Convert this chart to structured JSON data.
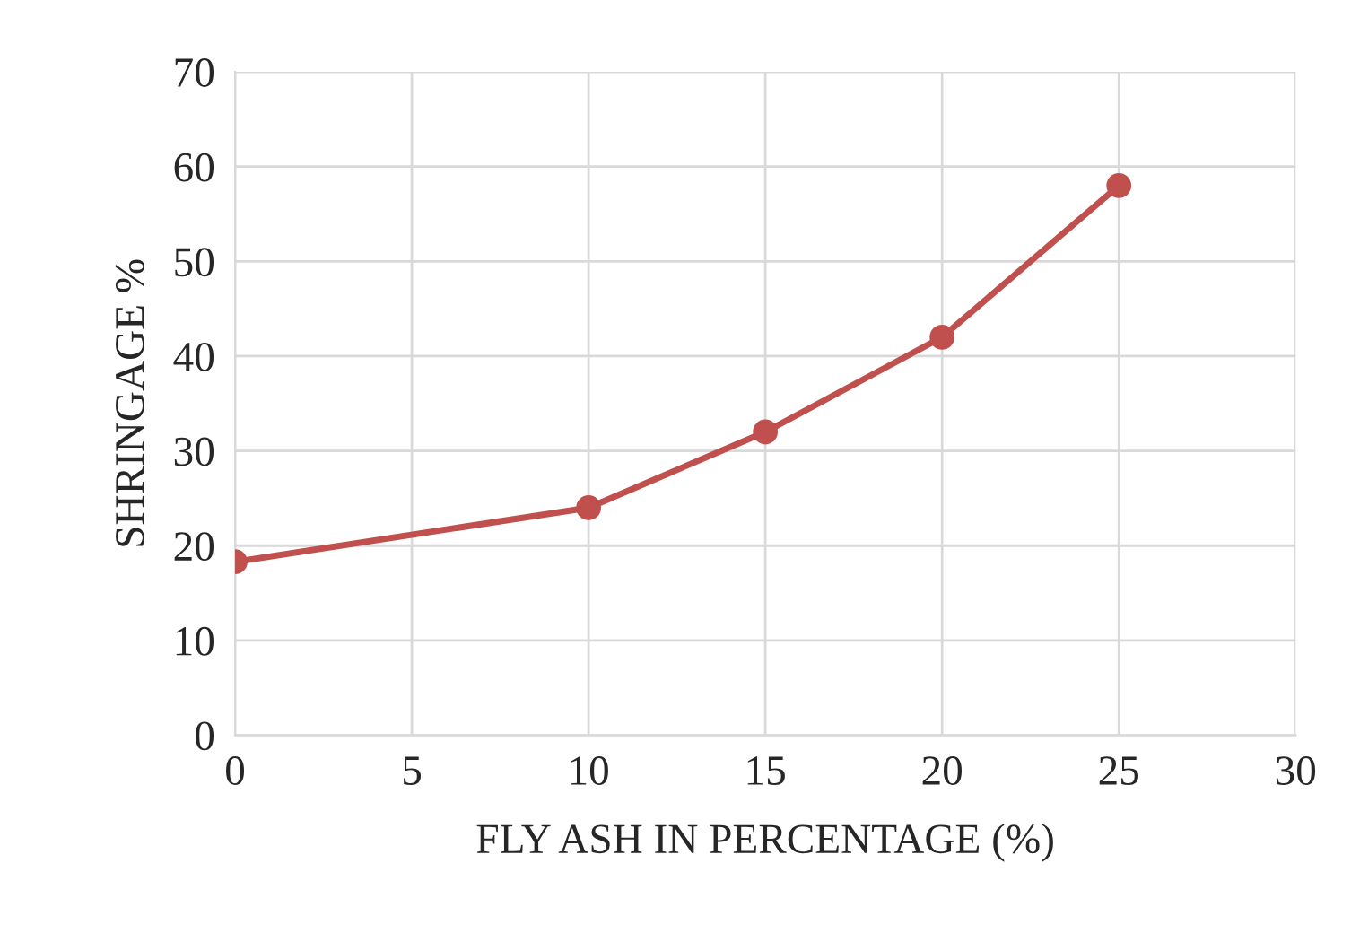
{
  "chart_data": {
    "type": "line",
    "xlabel": "FLY ASH IN PERCENTAGE (%)",
    "ylabel": "SHRINGAGE %",
    "x": [
      0,
      10,
      15,
      20,
      25
    ],
    "series": [
      {
        "color": "#c0504d",
        "values": [
          18.3,
          24,
          32,
          42,
          58
        ]
      }
    ],
    "xlim": [
      0,
      30
    ],
    "xticks": [
      0,
      5,
      10,
      15,
      20,
      25,
      30
    ],
    "ylim": [
      0,
      70
    ],
    "yticks": [
      0,
      10,
      20,
      30,
      40,
      50,
      60,
      70
    ],
    "grid": true,
    "marker": "circle",
    "line_style": "solid",
    "legend": false
  }
}
